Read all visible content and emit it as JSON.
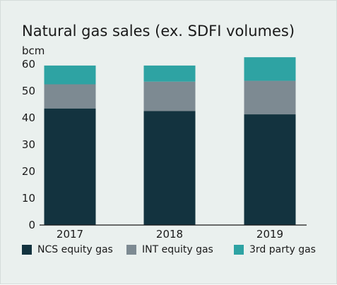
{
  "chart_data": {
    "type": "bar",
    "stacked": true,
    "title": "Natural gas sales (ex. SDFI volumes)",
    "ylabel": "bcm",
    "xlabel": "",
    "categories": [
      "2017",
      "2018",
      "2019"
    ],
    "ylim": [
      0,
      60
    ],
    "yticks": [
      0,
      10,
      20,
      30,
      40,
      50,
      60
    ],
    "grid": false,
    "legend_position": "bottom",
    "series": [
      {
        "name": "NCS equity gas",
        "color": "#13333f",
        "values": [
          43.5,
          42.5,
          41.3
        ]
      },
      {
        "name": "INT equity gas",
        "color": "#7d8a92",
        "values": [
          9.0,
          11.0,
          12.5
        ]
      },
      {
        "name": "3rd party gas",
        "color": "#2ea3a3",
        "values": [
          7.0,
          6.0,
          8.8
        ]
      }
    ]
  }
}
